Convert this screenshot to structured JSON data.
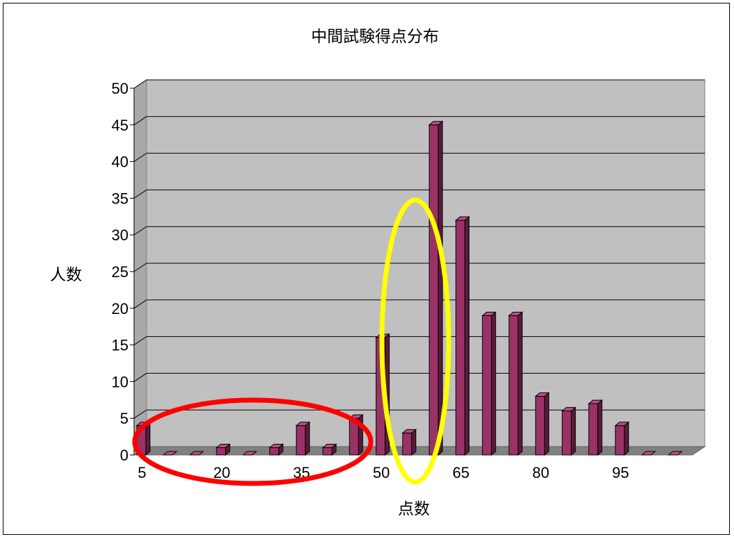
{
  "chart_data": {
    "type": "bar",
    "title": "中間試験得点分布",
    "xlabel": "点数",
    "ylabel": "人数",
    "categories": [
      "5",
      "10",
      "15",
      "20",
      "25",
      "30",
      "35",
      "40",
      "45",
      "50",
      "55",
      "60",
      "65",
      "70",
      "75",
      "80",
      "85",
      "90",
      "95",
      "100",
      "105"
    ],
    "x_tick_labels": [
      "5",
      "20",
      "35",
      "50",
      "65",
      "80",
      "95"
    ],
    "series": [
      {
        "values": [
          4,
          0,
          0,
          1,
          0,
          1,
          4,
          1,
          5,
          16,
          3,
          45,
          32,
          19,
          19,
          8,
          6,
          7,
          4,
          0,
          0
        ]
      }
    ],
    "ylim": [
      0,
      50
    ],
    "yticks": [
      0,
      5,
      10,
      15,
      20,
      25,
      30,
      35,
      40,
      45,
      50
    ],
    "grid": true,
    "legend": "none",
    "annotations": [
      {
        "shape": "ellipse",
        "color": "#ff0000",
        "around": [
          "5",
          "40"
        ]
      },
      {
        "shape": "ellipse",
        "color": "#ffff00",
        "around": [
          "50",
          "55"
        ]
      }
    ]
  },
  "colors": {
    "bar_front": "#993366",
    "bar_side": "#5a1a3c",
    "bar_top": "#b85080",
    "plot_back": "#c0c0c0",
    "plot_floor": "#808080"
  }
}
